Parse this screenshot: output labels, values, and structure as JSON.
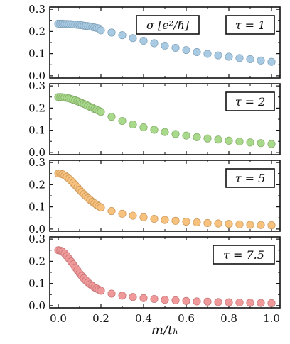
{
  "chart_data": {
    "type": "scatter",
    "xlabel": "m/t_h",
    "xlabel_display": "m/tₕ",
    "xlim": [
      -0.04,
      1.04
    ],
    "xticks": [
      0.0,
      0.2,
      0.4,
      0.6,
      0.8,
      1.0
    ],
    "xtick_labels": [
      "0.0",
      "0.2",
      "0.4",
      "0.6",
      "0.8",
      "1.0"
    ],
    "ylim": [
      -0.01,
      0.31
    ],
    "yticks": [
      0.0,
      0.1,
      0.2,
      0.3
    ],
    "ytick_labels": [
      "0.0",
      "0.1",
      "0.2",
      "0.3"
    ],
    "quantity_label": "σ [e²/ℏ]",
    "panels": [
      {
        "label": "τ = 1",
        "color": "#a8cbe3",
        "edge": "#7f9fb6",
        "x": [
          0.0,
          0.01,
          0.02,
          0.03,
          0.04,
          0.05,
          0.06,
          0.07,
          0.08,
          0.09,
          0.1,
          0.11,
          0.12,
          0.13,
          0.14,
          0.15,
          0.16,
          0.17,
          0.18,
          0.19,
          0.2,
          0.25,
          0.3,
          0.35,
          0.4,
          0.45,
          0.5,
          0.55,
          0.6,
          0.65,
          0.7,
          0.75,
          0.8,
          0.85,
          0.9,
          0.95,
          1.0
        ],
        "y": [
          0.235,
          0.235,
          0.235,
          0.234,
          0.234,
          0.233,
          0.233,
          0.232,
          0.231,
          0.23,
          0.229,
          0.228,
          0.226,
          0.225,
          0.224,
          0.222,
          0.22,
          0.218,
          0.216,
          0.214,
          0.205,
          0.195,
          0.183,
          0.17,
          0.158,
          0.147,
          0.136,
          0.126,
          0.116,
          0.107,
          0.099,
          0.092,
          0.086,
          0.08,
          0.075,
          0.069,
          0.063
        ]
      },
      {
        "label": "τ = 2",
        "color": "#a9d98b",
        "edge": "#7fa865",
        "x": [
          0.0,
          0.01,
          0.02,
          0.03,
          0.04,
          0.05,
          0.06,
          0.07,
          0.08,
          0.09,
          0.1,
          0.11,
          0.12,
          0.13,
          0.14,
          0.15,
          0.16,
          0.17,
          0.18,
          0.19,
          0.2,
          0.25,
          0.3,
          0.35,
          0.4,
          0.45,
          0.5,
          0.55,
          0.6,
          0.65,
          0.7,
          0.75,
          0.8,
          0.85,
          0.9,
          0.95,
          1.0
        ],
        "y": [
          0.25,
          0.25,
          0.249,
          0.248,
          0.246,
          0.244,
          0.241,
          0.238,
          0.235,
          0.231,
          0.227,
          0.223,
          0.219,
          0.215,
          0.21,
          0.205,
          0.201,
          0.196,
          0.192,
          0.188,
          0.183,
          0.161,
          0.142,
          0.126,
          0.113,
          0.102,
          0.092,
          0.083,
          0.076,
          0.069,
          0.063,
          0.058,
          0.053,
          0.049,
          0.045,
          0.042,
          0.038
        ]
      },
      {
        "label": "τ = 5",
        "color": "#f7c27d",
        "edge": "#c9955a",
        "x": [
          0.0,
          0.01,
          0.02,
          0.03,
          0.04,
          0.05,
          0.06,
          0.07,
          0.08,
          0.09,
          0.1,
          0.11,
          0.12,
          0.13,
          0.14,
          0.15,
          0.16,
          0.17,
          0.18,
          0.19,
          0.2,
          0.25,
          0.3,
          0.35,
          0.4,
          0.45,
          0.5,
          0.55,
          0.6,
          0.65,
          0.7,
          0.75,
          0.8,
          0.85,
          0.9,
          0.95,
          1.0
        ],
        "y": [
          0.25,
          0.25,
          0.247,
          0.242,
          0.235,
          0.227,
          0.218,
          0.208,
          0.198,
          0.188,
          0.177,
          0.167,
          0.157,
          0.148,
          0.139,
          0.131,
          0.123,
          0.116,
          0.109,
          0.103,
          0.097,
          0.081,
          0.069,
          0.06,
          0.053,
          0.046,
          0.041,
          0.037,
          0.033,
          0.03,
          0.027,
          0.025,
          0.023,
          0.021,
          0.019,
          0.018,
          0.017
        ]
      },
      {
        "label": "τ = 7.5",
        "color": "#f0999a",
        "edge": "#c27273",
        "x": [
          0.0,
          0.01,
          0.02,
          0.03,
          0.04,
          0.05,
          0.06,
          0.07,
          0.08,
          0.09,
          0.1,
          0.11,
          0.12,
          0.13,
          0.14,
          0.15,
          0.16,
          0.17,
          0.18,
          0.19,
          0.2,
          0.25,
          0.3,
          0.35,
          0.4,
          0.45,
          0.5,
          0.55,
          0.6,
          0.65,
          0.7,
          0.75,
          0.8,
          0.85,
          0.9,
          0.95,
          1.0
        ],
        "y": [
          0.25,
          0.248,
          0.243,
          0.235,
          0.224,
          0.212,
          0.199,
          0.186,
          0.172,
          0.159,
          0.146,
          0.134,
          0.123,
          0.113,
          0.104,
          0.096,
          0.089,
          0.082,
          0.077,
          0.072,
          0.067,
          0.054,
          0.045,
          0.039,
          0.034,
          0.03,
          0.026,
          0.024,
          0.021,
          0.019,
          0.018,
          0.016,
          0.015,
          0.014,
          0.013,
          0.012,
          0.011
        ]
      }
    ]
  }
}
